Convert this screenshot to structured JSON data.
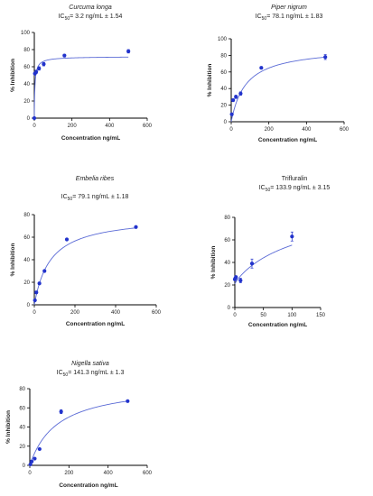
{
  "chart_data": [
    {
      "type": "scatter",
      "title": "Curcuma longa",
      "title_italic": true,
      "ic50_prefix": "IC",
      "ic50_sub": "50",
      "ic50_value": "= 3.2   ng/mL ± 1.54",
      "xlabel": "Concentration ng/mL",
      "ylabel": "% Inhibition",
      "xlim": [
        0,
        600
      ],
      "ylim": [
        0,
        100
      ],
      "xticks": [
        0,
        200,
        400,
        600
      ],
      "yticks": [
        0,
        20,
        40,
        60,
        80,
        100
      ],
      "points": [
        [
          0,
          0
        ],
        [
          3,
          52
        ],
        [
          10,
          54
        ],
        [
          25,
          58
        ],
        [
          50,
          63
        ],
        [
          160,
          73
        ],
        [
          500,
          78
        ]
      ],
      "errors": [
        0,
        0,
        2,
        2,
        2,
        1.5,
        2
      ],
      "fit": {
        "model": "hill",
        "top": 72,
        "ic50": 3.2,
        "hill": 0.9
      }
    },
    {
      "type": "scatter",
      "title": "Piper nigrum",
      "title_italic": true,
      "ic50_prefix": "IC",
      "ic50_sub": "50",
      "ic50_value": "= 78.1  ng/mL ± 1.83",
      "xlabel": "Concentration ng/mL",
      "ylabel": "% Inhibition",
      "xlim": [
        0,
        600
      ],
      "ylim": [
        0,
        100
      ],
      "xticks": [
        0,
        200,
        400,
        600
      ],
      "yticks": [
        0,
        20,
        40,
        60,
        80,
        100
      ],
      "points": [
        [
          3,
          9
        ],
        [
          10,
          26
        ],
        [
          25,
          30
        ],
        [
          50,
          34
        ],
        [
          160,
          65
        ],
        [
          500,
          78
        ]
      ],
      "errors": [
        1,
        1.5,
        2,
        2,
        1.5,
        3
      ],
      "fit": {
        "model": "hill",
        "top": 90,
        "ic50": 78.1,
        "hill": 1
      }
    },
    {
      "type": "scatter",
      "title": "Embelia ribes",
      "title_italic": true,
      "ic50_prefix": "IC",
      "ic50_sub": "50",
      "ic50_value": "= 79.1  ng/mL ± 1.18",
      "xlabel": "Concentration ng/mL",
      "ylabel": "% Inhibition",
      "xlim": [
        0,
        600
      ],
      "ylim": [
        0,
        80
      ],
      "xticks": [
        0,
        200,
        400,
        600
      ],
      "yticks": [
        0,
        20,
        40,
        60,
        80
      ],
      "points": [
        [
          3,
          4
        ],
        [
          10,
          11
        ],
        [
          25,
          19
        ],
        [
          50,
          30
        ],
        [
          160,
          58
        ],
        [
          500,
          69
        ]
      ],
      "errors": [
        0.5,
        1,
        1,
        1,
        1,
        1
      ],
      "fit": {
        "model": "hill",
        "top": 79,
        "ic50": 79.1,
        "hill": 1
      }
    },
    {
      "type": "scatter",
      "title": "Trifluralin",
      "title_italic": false,
      "ic50_prefix": "IC",
      "ic50_sub": "50",
      "ic50_value": "= 133.9 ng/mL ± 3.15",
      "xlabel": "Concentration ng/mL",
      "ylabel": "% Inhibition",
      "xlim": [
        0,
        150
      ],
      "ylim": [
        0,
        80
      ],
      "xticks": [
        0,
        50,
        100,
        150
      ],
      "yticks": [
        0,
        20,
        40,
        60,
        80
      ],
      "points": [
        [
          0,
          25
        ],
        [
          1,
          26
        ],
        [
          2,
          27
        ],
        [
          10,
          24
        ],
        [
          30,
          39
        ],
        [
          100,
          63
        ]
      ],
      "errors": [
        1,
        1,
        1,
        2,
        4,
        4
      ],
      "fit": {
        "model": "hill",
        "top": 100,
        "ic50": 133.9,
        "hill": 0.9,
        "bottom": 21
      }
    },
    {
      "type": "scatter",
      "title": "Nigella sativa",
      "title_italic": true,
      "ic50_prefix": "IC",
      "ic50_sub": "50",
      "ic50_value": "= 141.3 ng/mL ± 1.3",
      "xlabel": "Concentration ng/mL",
      "ylabel": "% Inhibition",
      "xlim": [
        0,
        600
      ],
      "ylim": [
        0,
        80
      ],
      "xticks": [
        0,
        200,
        400,
        600
      ],
      "yticks": [
        0,
        20,
        40,
        60,
        80
      ],
      "points": [
        [
          3,
          1
        ],
        [
          10,
          4
        ],
        [
          25,
          7
        ],
        [
          50,
          17
        ],
        [
          160,
          56
        ],
        [
          500,
          67
        ]
      ],
      "errors": [
        0.5,
        0.5,
        0.5,
        1,
        2,
        1
      ],
      "fit": {
        "model": "hill",
        "top": 86,
        "ic50": 141.3,
        "hill": 1
      }
    }
  ]
}
